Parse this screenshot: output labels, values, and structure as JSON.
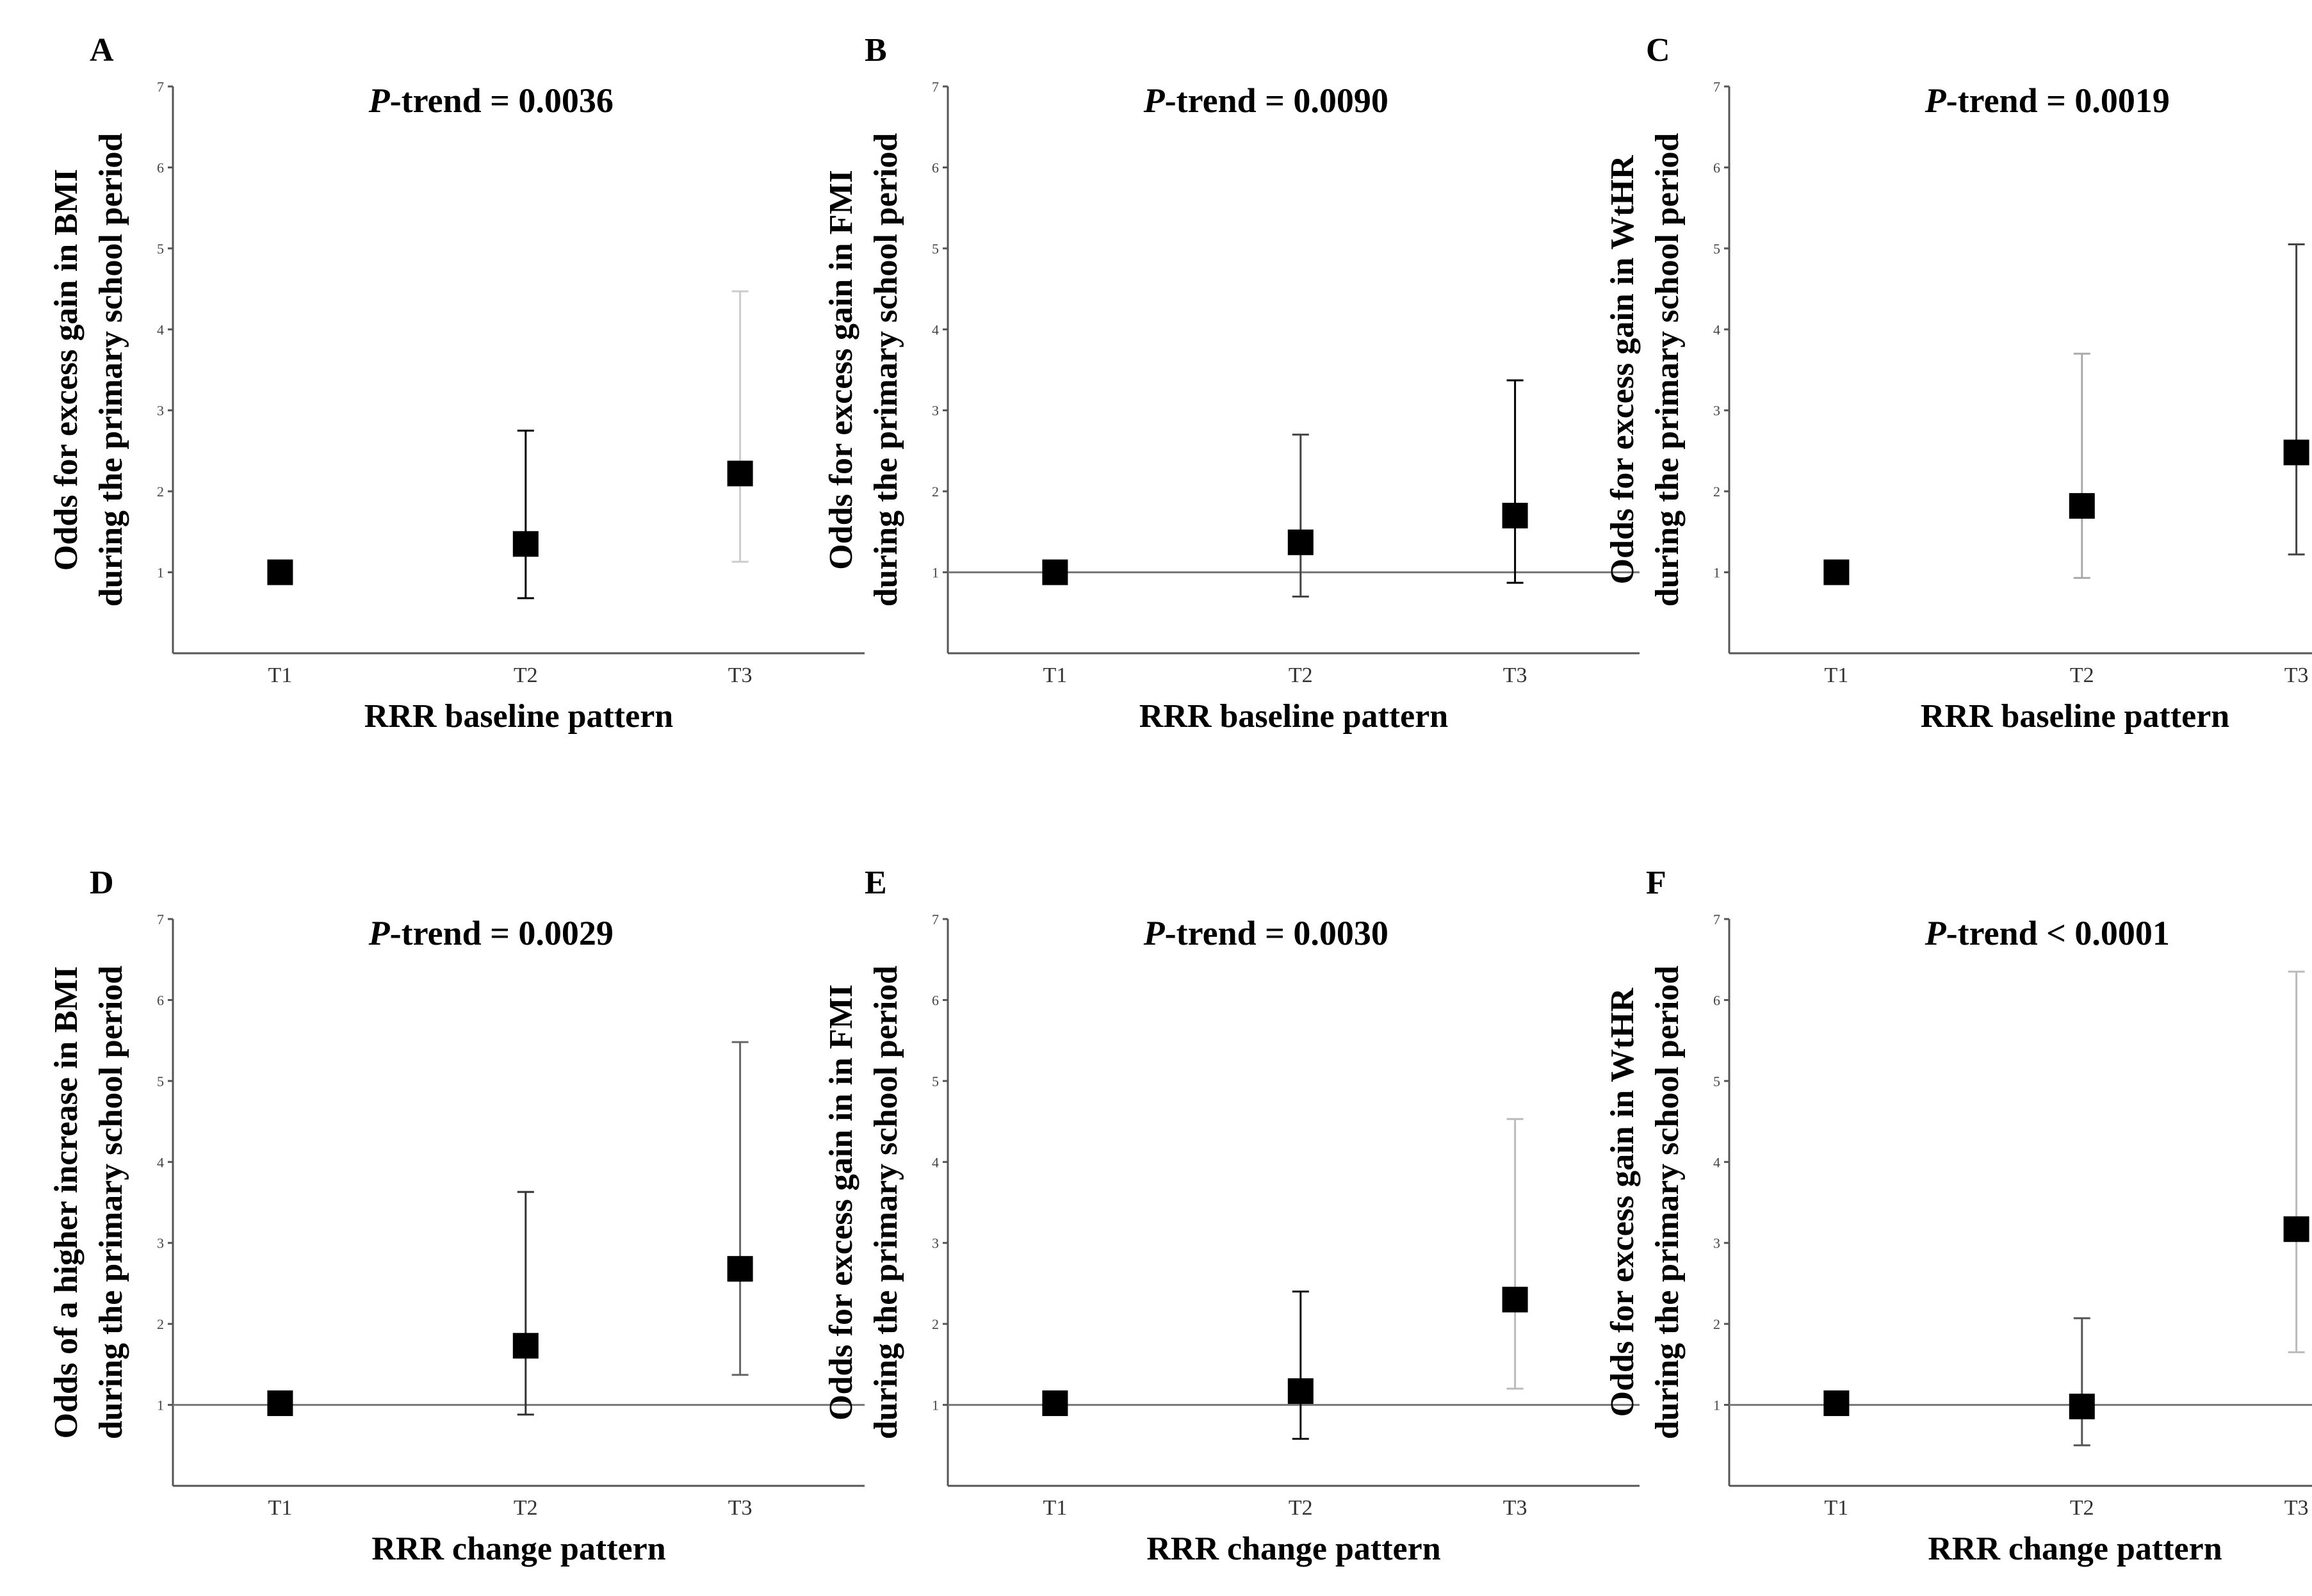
{
  "chart_data": [
    {
      "panel": "A",
      "type": "scatter",
      "ptrend_label": "P",
      "ptrend_rest": "-trend = 0.0036",
      "ylabel_line1": "Odds for excess gain in BMI",
      "ylabel_line2": "during the primary school period",
      "xlabel": "RRR baseline pattern",
      "categories": [
        "T1",
        "T2",
        "T3"
      ],
      "yticks": [
        "1",
        "2",
        "3",
        "4",
        "5",
        "6",
        "7"
      ],
      "ylim": [
        0,
        7
      ],
      "reference_line": false,
      "series": [
        {
          "points": [
            {
              "x": "T1",
              "y": 1.0,
              "lower": null,
              "upper": null
            },
            {
              "x": "T2",
              "y": 1.35,
              "lower": 0.68,
              "upper": 2.75
            },
            {
              "x": "T3",
              "y": 2.22,
              "lower": 1.13,
              "upper": 4.47
            }
          ]
        }
      ],
      "errbar_colors": [
        "#000000",
        "#000000",
        "#cccccc"
      ]
    },
    {
      "panel": "B",
      "type": "scatter",
      "ptrend_label": "P",
      "ptrend_rest": "-trend = 0.0090",
      "ylabel_line1": "Odds for excess gain in FMI",
      "ylabel_line2": "during the primary school period",
      "xlabel": "RRR baseline pattern",
      "categories": [
        "T1",
        "T2",
        "T3"
      ],
      "yticks": [
        "1",
        "2",
        "3",
        "4",
        "5",
        "6",
        "7"
      ],
      "ylim": [
        0,
        7
      ],
      "reference_line": true,
      "series": [
        {
          "points": [
            {
              "x": "T1",
              "y": 1.0,
              "lower": null,
              "upper": null
            },
            {
              "x": "T2",
              "y": 1.37,
              "lower": 0.7,
              "upper": 2.7
            },
            {
              "x": "T3",
              "y": 1.7,
              "lower": 0.87,
              "upper": 3.37
            }
          ]
        }
      ],
      "errbar_colors": [
        "#000000",
        "#444444",
        "#000000"
      ]
    },
    {
      "panel": "C",
      "type": "scatter",
      "ptrend_label": "P",
      "ptrend_rest": "-trend = 0.0019",
      "ylabel_line1": "Odds for excess gain in WtHR",
      "ylabel_line2": "during the primary school period",
      "xlabel": "RRR baseline pattern",
      "categories": [
        "T1",
        "T2",
        "T3"
      ],
      "yticks": [
        "1",
        "2",
        "3",
        "4",
        "5",
        "6",
        "7"
      ],
      "ylim": [
        0,
        7
      ],
      "reference_line": false,
      "series": [
        {
          "points": [
            {
              "x": "T1",
              "y": 1.0,
              "lower": null,
              "upper": null
            },
            {
              "x": "T2",
              "y": 1.82,
              "lower": 0.93,
              "upper": 3.7
            },
            {
              "x": "T3",
              "y": 2.48,
              "lower": 1.22,
              "upper": 5.05
            }
          ]
        }
      ],
      "errbar_colors": [
        "#000000",
        "#aaaaaa",
        "#444444"
      ]
    },
    {
      "panel": "D",
      "type": "scatter",
      "ptrend_label": "P",
      "ptrend_rest": "-trend = 0.0029",
      "ylabel_line1": "Odds of a higher increase in BMI",
      "ylabel_line2": "during the primary school period",
      "xlabel": "RRR change pattern",
      "categories": [
        "T1",
        "T2",
        "T3"
      ],
      "yticks": [
        "1",
        "2",
        "3",
        "4",
        "5",
        "6",
        "7"
      ],
      "ylim": [
        0,
        7
      ],
      "reference_line": true,
      "series": [
        {
          "points": [
            {
              "x": "T1",
              "y": 1.02,
              "lower": null,
              "upper": null
            },
            {
              "x": "T2",
              "y": 1.73,
              "lower": 0.88,
              "upper": 3.63
            },
            {
              "x": "T3",
              "y": 2.68,
              "lower": 1.37,
              "upper": 5.48
            }
          ]
        }
      ],
      "errbar_colors": [
        "#000000",
        "#333333",
        "#666666"
      ]
    },
    {
      "panel": "E",
      "type": "scatter",
      "ptrend_label": "P",
      "ptrend_rest": "-trend = 0.0030",
      "ylabel_line1": "Odds for excess gain in in FMI",
      "ylabel_line2": "during the primary school period",
      "xlabel": "RRR change pattern",
      "categories": [
        "T1",
        "T2",
        "T3"
      ],
      "yticks": [
        "1",
        "2",
        "3",
        "4",
        "5",
        "6",
        "7"
      ],
      "ylim": [
        0,
        7
      ],
      "reference_line": true,
      "series": [
        {
          "points": [
            {
              "x": "T1",
              "y": 1.02,
              "lower": null,
              "upper": null
            },
            {
              "x": "T2",
              "y": 1.17,
              "lower": 0.58,
              "upper": 2.4
            },
            {
              "x": "T3",
              "y": 2.3,
              "lower": 1.2,
              "upper": 4.53
            }
          ]
        }
      ],
      "errbar_colors": [
        "#000000",
        "#111111",
        "#bbbbbb"
      ]
    },
    {
      "panel": "F",
      "type": "scatter",
      "ptrend_label": "P",
      "ptrend_rest": "-trend < 0.0001",
      "ylabel_line1": "Odds for excess gain in WtHR",
      "ylabel_line2": "during the primary school period",
      "xlabel": "RRR change pattern",
      "categories": [
        "T1",
        "T2",
        "T3"
      ],
      "yticks": [
        "1",
        "2",
        "3",
        "4",
        "5",
        "6",
        "7"
      ],
      "ylim": [
        0,
        7
      ],
      "reference_line": true,
      "series": [
        {
          "points": [
            {
              "x": "T1",
              "y": 1.02,
              "lower": null,
              "upper": null
            },
            {
              "x": "T2",
              "y": 0.98,
              "lower": 0.5,
              "upper": 2.07
            },
            {
              "x": "T3",
              "y": 3.17,
              "lower": 1.65,
              "upper": 6.35
            }
          ]
        }
      ],
      "errbar_colors": [
        "#000000",
        "#555555",
        "#bbbbbb"
      ]
    }
  ]
}
